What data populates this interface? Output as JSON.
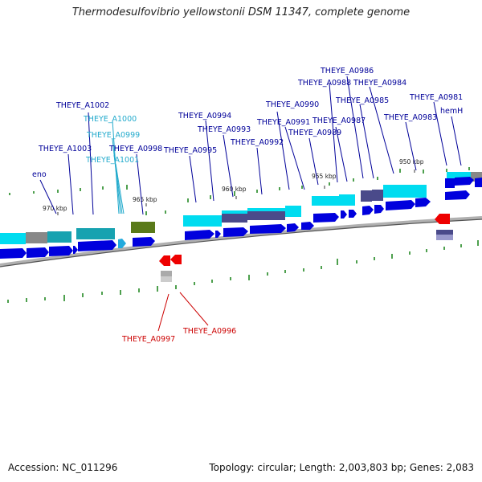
{
  "title": "Thermodesulfovibrio yellowstonii DSM 11347, complete genome",
  "footer": {
    "accession": "Accession: NC_011296",
    "summary": "Topology: circular; Length: 2,003,803 bp; Genes: 2,083"
  },
  "colors": {
    "forward_gene": "#0000dd",
    "reverse_gene": "#ee0000",
    "cds_cyan": "#00dcf0",
    "cds_teal": "#17a2b0",
    "cds_slate": "#4a4a8a",
    "cds_gray": "#888888",
    "cds_olive": "#5a7a1a",
    "blue_label": "#000099",
    "cyan_label": "#22aacc",
    "red_label": "#cc0000",
    "backbone": "#888888",
    "gc_tick": "#228822"
  },
  "position_ticks": [
    "970 kbp",
    "965 kbp",
    "960 kbp",
    "955 kbp",
    "950 kbp"
  ],
  "gene_labels": {
    "eno": "eno",
    "a1003": "THEYE_A1003",
    "a1002": "THEYE_A1002",
    "a1000": "THEYE_A1000",
    "a0999": "THEYE_A0999",
    "a1001": "THEYE_A1001",
    "a0998": "THEYE_A0998",
    "a0995": "THEYE_A0995",
    "a0994": "THEYE_A0994",
    "a0993": "THEYE_A0993",
    "a0992": "THEYE_A0992",
    "a0991": "THEYE_A0991",
    "a0990": "THEYE_A0990",
    "a0989": "THEYE_A0989",
    "a0988": "THEYE_A0988",
    "a0987": "THEYE_A0987",
    "a0986": "THEYE_A0986",
    "a0985": "THEYE_A0985",
    "a0984": "THEYE_A0984",
    "a0983": "THEYE_A0983",
    "a0981": "THEYE_A0981",
    "hemH": "hemH",
    "a0997": "THEYE_A0997",
    "a0996": "THEYE_A0996"
  }
}
